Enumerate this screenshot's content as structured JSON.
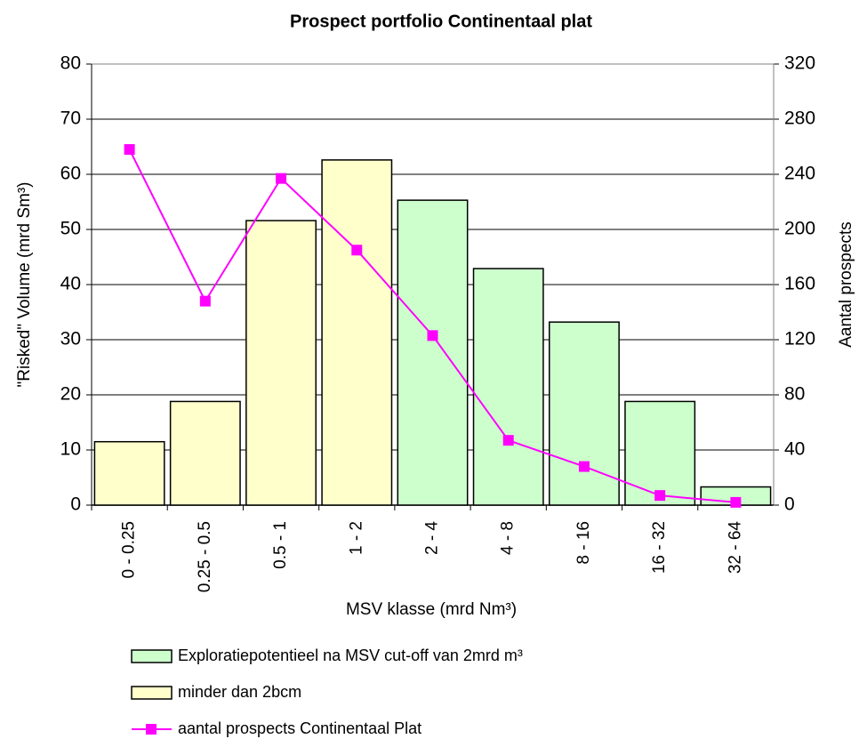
{
  "chart_data": {
    "type": "bar",
    "title": "Prospect portfolio Continentaal plat",
    "x_label": "MSV klasse (mrd Nm³)",
    "y_label": "\"Risked\" Volume (mrd Sm³)",
    "y2_label": "Aantal prospects",
    "categories": [
      "0 - 0.25",
      "0.25 - 0.5",
      "0.5 - 1",
      "1 - 2",
      "2 - 4",
      "4 - 8",
      "8 - 16",
      "16 - 32",
      "32 - 64"
    ],
    "series": [
      {
        "name": "Exploratiepotentieel na MSV cut-off van 2mrd m³",
        "type": "bar",
        "color": "#ccffcc",
        "values": [
          null,
          null,
          null,
          null,
          55.3,
          42.9,
          33.2,
          18.8,
          3.3
        ]
      },
      {
        "name": "minder dan 2bcm",
        "type": "bar",
        "color": "#ffffcc",
        "values": [
          11.5,
          18.8,
          51.6,
          62.6,
          null,
          null,
          null,
          null,
          null
        ]
      },
      {
        "name": "aantal prospects Continentaal Plat",
        "type": "line",
        "axis": "y2",
        "color": "#ff00ff",
        "values": [
          258,
          148,
          237,
          185,
          123,
          47,
          28,
          7,
          2
        ]
      }
    ],
    "ylim": [
      0,
      80
    ],
    "yticks": [
      0,
      10,
      20,
      30,
      40,
      50,
      60,
      70,
      80
    ],
    "y2lim": [
      0,
      320
    ],
    "y2ticks": [
      0,
      40,
      80,
      120,
      160,
      200,
      240,
      280,
      320
    ],
    "grid": true
  }
}
